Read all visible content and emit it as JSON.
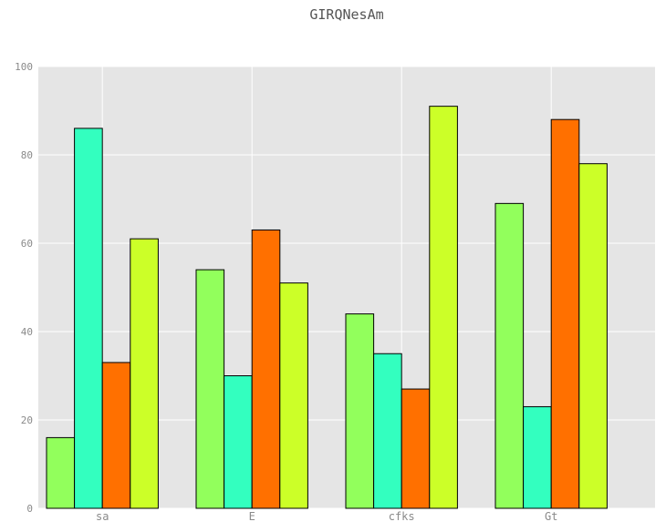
{
  "chart_data": {
    "type": "bar",
    "title": "GIRQNesAm",
    "xlabel": "",
    "ylabel": "",
    "categories": [
      "sa",
      "E",
      "cfks",
      "Gt"
    ],
    "series": [
      {
        "color": "#92ff5c",
        "values": [
          16,
          54,
          44,
          69
        ]
      },
      {
        "color": "#33ffbf",
        "values": [
          86,
          30,
          35,
          23
        ]
      },
      {
        "color": "#ff7000",
        "values": [
          33,
          63,
          27,
          88
        ]
      },
      {
        "color": "#ccff28",
        "values": [
          61,
          51,
          91,
          78
        ]
      }
    ],
    "ylim": [
      0,
      100
    ],
    "yticks": [
      0,
      20,
      40,
      60,
      80,
      100
    ],
    "grid": true,
    "background": "#e5e5e5"
  }
}
